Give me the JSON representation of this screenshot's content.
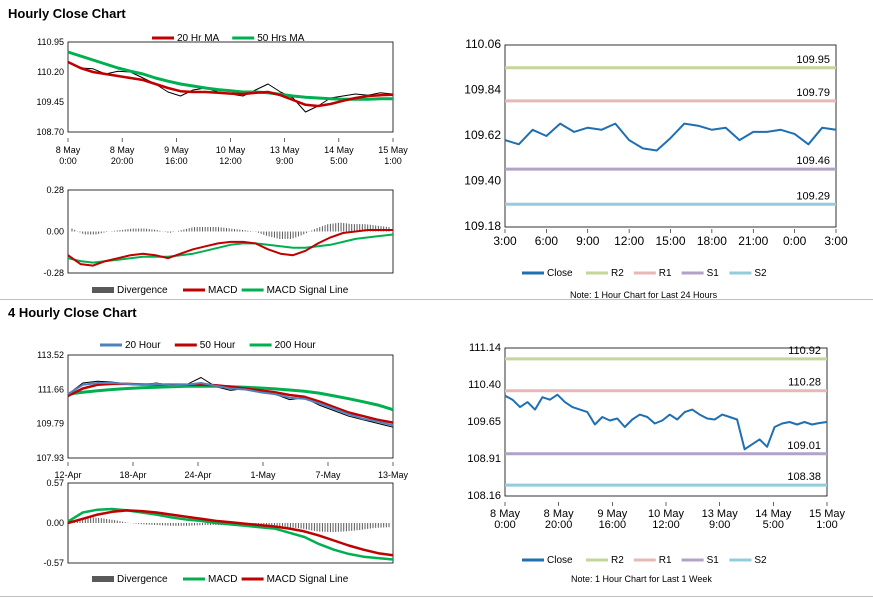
{
  "sections": {
    "hourly_title": "Hourly Close Chart",
    "four_hourly_title": "4 Hourly Close Chart"
  },
  "colors": {
    "red": "#c00000",
    "green": "#00b050",
    "blue": "#1f6fb2",
    "steelblue": "#4f81bd",
    "r2": "#c3d69b",
    "r1": "#e6b9b8",
    "s1": "#b3a2c7",
    "s2": "#93cddd",
    "gray": "#595959"
  },
  "notes": {
    "hourly": "Note: 1 Hour Chart for Last 24 Hours",
    "weekly": "Note: 1 Hour Chart for Last 1 Week"
  },
  "chart_data": [
    {
      "id": "c1",
      "type": "line",
      "legend": [
        "20 Hr MA",
        "50 Hrs MA"
      ],
      "yticks": [
        "110.95",
        "110.20",
        "109.45",
        "108.70"
      ],
      "ylim": [
        108.7,
        110.95
      ],
      "xticks": [
        [
          "8 May",
          "0:00"
        ],
        [
          "8 May",
          "20:00"
        ],
        [
          "9 May",
          "16:00"
        ],
        [
          "10 May",
          "12:00"
        ],
        [
          "13 May",
          "9:00"
        ],
        [
          "14 May",
          "5:00"
        ],
        [
          "15 May",
          "1:00"
        ]
      ],
      "series": [
        {
          "name": "Close",
          "values": [
            110.45,
            110.3,
            110.28,
            110.15,
            110.22,
            110.2,
            110.05,
            109.9,
            109.7,
            109.6,
            109.75,
            109.8,
            109.7,
            109.65,
            109.6,
            109.75,
            109.9,
            109.7,
            109.55,
            109.2,
            109.35,
            109.55,
            109.6,
            109.65,
            109.62,
            109.68,
            109.65
          ]
        },
        {
          "name": "20 Hr MA",
          "values": [
            110.45,
            110.3,
            110.2,
            110.15,
            110.1,
            110.05,
            110.0,
            109.9,
            109.8,
            109.72,
            109.7,
            109.7,
            109.68,
            109.66,
            109.65,
            109.68,
            109.7,
            109.62,
            109.5,
            109.38,
            109.35,
            109.4,
            109.48,
            109.55,
            109.6,
            109.62,
            109.63
          ]
        },
        {
          "name": "50 Hrs MA",
          "values": [
            110.7,
            110.6,
            110.5,
            110.4,
            110.3,
            110.22,
            110.15,
            110.05,
            109.97,
            109.9,
            109.85,
            109.8,
            109.76,
            109.73,
            109.7,
            109.7,
            109.68,
            109.64,
            109.6,
            109.57,
            109.55,
            109.53,
            109.52,
            109.52,
            109.52,
            109.53,
            109.53
          ]
        }
      ]
    },
    {
      "id": "c2",
      "type": "line",
      "legend": [
        "Divergence",
        "MACD",
        "MACD Signal Line"
      ],
      "yticks": [
        "0.28",
        "0.00",
        "-0.28"
      ],
      "ylim": [
        -0.28,
        0.28
      ],
      "series": [
        {
          "name": "MACD",
          "values": [
            -0.16,
            -0.22,
            -0.23,
            -0.2,
            -0.18,
            -0.16,
            -0.15,
            -0.16,
            -0.18,
            -0.15,
            -0.12,
            -0.1,
            -0.08,
            -0.07,
            -0.07,
            -0.08,
            -0.12,
            -0.15,
            -0.16,
            -0.13,
            -0.08,
            -0.04,
            -0.01,
            0.0,
            0.01,
            0.01,
            0.01
          ]
        },
        {
          "name": "MACD Signal Line",
          "values": [
            -0.18,
            -0.2,
            -0.21,
            -0.2,
            -0.19,
            -0.18,
            -0.17,
            -0.17,
            -0.17,
            -0.16,
            -0.15,
            -0.13,
            -0.11,
            -0.09,
            -0.08,
            -0.08,
            -0.09,
            -0.1,
            -0.11,
            -0.11,
            -0.1,
            -0.09,
            -0.07,
            -0.05,
            -0.04,
            -0.03,
            -0.02
          ]
        },
        {
          "name": "Divergence",
          "values": [
            0.02,
            -0.02,
            -0.02,
            0.0,
            0.01,
            0.02,
            0.02,
            0.01,
            -0.01,
            0.01,
            0.03,
            0.03,
            0.03,
            0.02,
            0.01,
            0.0,
            -0.03,
            -0.05,
            -0.05,
            -0.02,
            0.02,
            0.05,
            0.06,
            0.05,
            0.05,
            0.04,
            0.03
          ]
        }
      ]
    },
    {
      "id": "c3",
      "type": "line",
      "legend": [
        "Close",
        "R2",
        "R1",
        "S1",
        "S2"
      ],
      "yticks": [
        "110.06",
        "109.84",
        "109.62",
        "109.40",
        "109.18"
      ],
      "ylim": [
        109.18,
        110.06
      ],
      "xticks": [
        "3:00",
        "6:00",
        "9:00",
        "12:00",
        "15:00",
        "18:00",
        "21:00",
        "0:00",
        "3:00"
      ],
      "levels": [
        {
          "name": "R2",
          "value": 109.95,
          "label": "109.95"
        },
        {
          "name": "R1",
          "value": 109.79,
          "label": "109.79"
        },
        {
          "name": "S1",
          "value": 109.46,
          "label": "109.46"
        },
        {
          "name": "S2",
          "value": 109.29,
          "label": "109.29"
        }
      ],
      "series": [
        {
          "name": "Close",
          "values": [
            109.6,
            109.58,
            109.65,
            109.62,
            109.68,
            109.64,
            109.66,
            109.65,
            109.68,
            109.6,
            109.56,
            109.55,
            109.61,
            109.68,
            109.67,
            109.65,
            109.66,
            109.6,
            109.64,
            109.64,
            109.65,
            109.63,
            109.58,
            109.66,
            109.65
          ]
        }
      ]
    },
    {
      "id": "c4",
      "type": "line",
      "legend": [
        "20 Hour",
        "50 Hour",
        "200 Hour"
      ],
      "yticks": [
        "113.52",
        "111.66",
        "109.79",
        "107.93"
      ],
      "ylim": [
        107.93,
        113.52
      ],
      "xticks": [
        "12-Apr",
        "18-Apr",
        "24-Apr",
        "1-May",
        "7-May",
        "13-May"
      ],
      "series": [
        {
          "name": "Close",
          "values": [
            111.4,
            112.0,
            112.1,
            112.05,
            111.95,
            111.9,
            112.0,
            111.85,
            111.9,
            112.3,
            111.8,
            111.6,
            111.7,
            111.5,
            111.4,
            111.1,
            111.2,
            110.8,
            110.5,
            110.2,
            110.0,
            109.8,
            109.6
          ]
        },
        {
          "name": "20 Hour",
          "values": [
            111.4,
            111.9,
            112.0,
            112.0,
            111.95,
            111.9,
            111.95,
            111.88,
            111.9,
            112.0,
            111.85,
            111.7,
            111.65,
            111.5,
            111.4,
            111.2,
            111.15,
            110.9,
            110.6,
            110.3,
            110.05,
            109.9,
            109.7
          ]
        },
        {
          "name": "50 Hour",
          "values": [
            111.3,
            111.7,
            111.9,
            111.95,
            111.95,
            111.92,
            111.92,
            111.9,
            111.9,
            111.92,
            111.88,
            111.8,
            111.7,
            111.6,
            111.5,
            111.35,
            111.25,
            111.0,
            110.7,
            110.4,
            110.2,
            110.0,
            109.85
          ]
        },
        {
          "name": "200 Hour",
          "values": [
            111.4,
            111.5,
            111.58,
            111.65,
            111.7,
            111.74,
            111.77,
            111.8,
            111.82,
            111.83,
            111.82,
            111.8,
            111.77,
            111.73,
            111.68,
            111.62,
            111.55,
            111.45,
            111.3,
            111.15,
            110.98,
            110.8,
            110.55
          ]
        }
      ]
    },
    {
      "id": "c5",
      "type": "line",
      "legend": [
        "Divergence",
        "MACD",
        "MACD Signal Line"
      ],
      "yticks": [
        "0.57",
        "0.00",
        "-0.57"
      ],
      "ylim": [
        -0.57,
        0.57
      ],
      "series": [
        {
          "name": "MACD",
          "values": [
            0.02,
            0.15,
            0.19,
            0.2,
            0.18,
            0.15,
            0.12,
            0.08,
            0.05,
            0.03,
            0.0,
            -0.02,
            -0.04,
            -0.06,
            -0.08,
            -0.14,
            -0.2,
            -0.3,
            -0.38,
            -0.44,
            -0.48,
            -0.5,
            -0.52
          ]
        },
        {
          "name": "MACD Signal Line",
          "values": [
            0.0,
            0.06,
            0.12,
            0.16,
            0.18,
            0.17,
            0.15,
            0.12,
            0.09,
            0.06,
            0.03,
            0.01,
            -0.01,
            -0.03,
            -0.05,
            -0.08,
            -0.12,
            -0.18,
            -0.25,
            -0.32,
            -0.38,
            -0.43,
            -0.46
          ]
        },
        {
          "name": "Divergence",
          "values": [
            0.02,
            0.09,
            0.07,
            0.04,
            0.0,
            -0.02,
            -0.03,
            -0.04,
            -0.04,
            -0.03,
            -0.03,
            -0.03,
            -0.03,
            -0.03,
            -0.03,
            -0.06,
            -0.08,
            -0.12,
            -0.13,
            -0.12,
            -0.1,
            -0.07,
            -0.06
          ]
        }
      ]
    },
    {
      "id": "c6",
      "type": "line",
      "legend": [
        "Close",
        "R2",
        "R1",
        "S1",
        "S2"
      ],
      "yticks": [
        "111.14",
        "110.40",
        "109.65",
        "108.91",
        "108.16"
      ],
      "ylim": [
        108.16,
        111.14
      ],
      "xticks": [
        [
          "8 May",
          "0:00"
        ],
        [
          "8 May",
          "20:00"
        ],
        [
          "9 May",
          "16:00"
        ],
        [
          "10 May",
          "12:00"
        ],
        [
          "13 May",
          "9:00"
        ],
        [
          "14 May",
          "5:00"
        ],
        [
          "15 May",
          "1:00"
        ]
      ],
      "levels": [
        {
          "name": "R2",
          "value": 110.92,
          "label": "110.92"
        },
        {
          "name": "R1",
          "value": 110.28,
          "label": "110.28"
        },
        {
          "name": "S1",
          "value": 109.01,
          "label": "109.01"
        },
        {
          "name": "S2",
          "value": 108.38,
          "label": "108.38"
        }
      ],
      "series": [
        {
          "name": "Close",
          "values": [
            110.18,
            110.1,
            109.95,
            110.05,
            109.9,
            110.15,
            110.1,
            110.2,
            110.05,
            109.95,
            109.9,
            109.85,
            109.6,
            109.75,
            109.68,
            109.72,
            109.55,
            109.7,
            109.8,
            109.75,
            109.62,
            109.68,
            109.8,
            109.7,
            109.85,
            109.9,
            109.8,
            109.72,
            109.7,
            109.8,
            109.75,
            109.7,
            109.1,
            109.2,
            109.3,
            109.15,
            109.55,
            109.62,
            109.65,
            109.6,
            109.65,
            109.6,
            109.63,
            109.65
          ]
        }
      ]
    }
  ]
}
